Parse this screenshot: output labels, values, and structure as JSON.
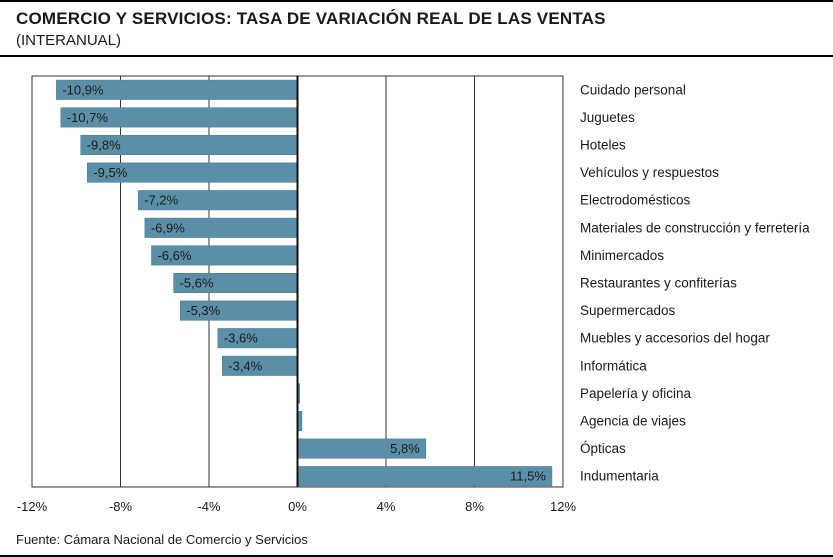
{
  "header": {
    "title": "COMERCIO Y SERVICIOS: TASA DE VARIACIÓN REAL DE LAS VENTAS",
    "subtitle": "(INTERANUAL)"
  },
  "footer": {
    "source": "Fuente: Cámara Nacional de Comercio y Servicios"
  },
  "colors": {
    "bar": "#5b8fa8",
    "bar_stroke": "#4a7a92",
    "grid": "#333333",
    "zero_line": "#111111"
  },
  "chart_data": {
    "type": "bar",
    "orientation": "horizontal",
    "categories": [
      "Cuidado personal",
      "Juguetes",
      "Hoteles",
      "Vehículos y respuestos",
      "Electrodomésticos",
      "Materiales de construcción y ferretería",
      "Minimercados",
      "Restaurantes y confiterías",
      "Supermercados",
      "Muebles y accesorios del hogar",
      "Informática",
      "Papelería y oficina",
      "Agencia de viajes",
      "Ópticas",
      "Indumentaria"
    ],
    "values": [
      -10.9,
      -10.7,
      -9.8,
      -9.5,
      -7.2,
      -6.9,
      -6.6,
      -5.6,
      -5.3,
      -3.6,
      -3.4,
      0.1,
      0.2,
      5.8,
      11.5
    ],
    "data_labels": [
      "-10,9%",
      "-10,7%",
      "-9,8%",
      "-9,5%",
      "-7,2%",
      "-6,9%",
      "-6,6%",
      "-5,6%",
      "-5,3%",
      "-3,6%",
      "-3,4%",
      "",
      "",
      "5,8%",
      "11,5%"
    ],
    "xlim": [
      -12,
      12
    ],
    "ticks": [
      -12,
      -8,
      -4,
      0,
      4,
      8,
      12
    ],
    "tick_labels": [
      "-12%",
      "-8%",
      "-4%",
      "0%",
      "4%",
      "8%",
      "12%"
    ],
    "grid": true,
    "legend": "none"
  }
}
